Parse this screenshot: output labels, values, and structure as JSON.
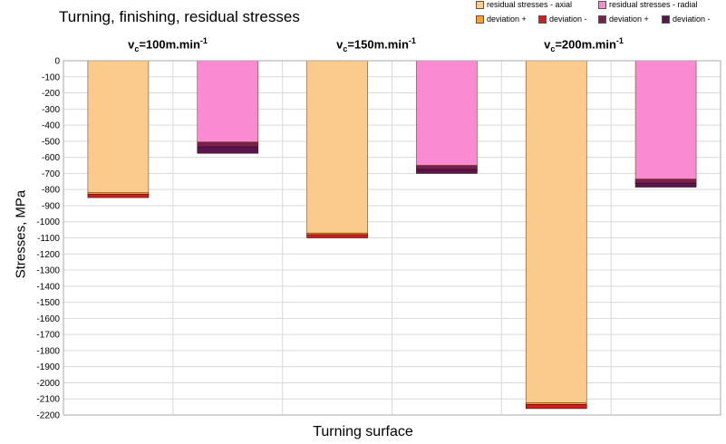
{
  "chart_data": {
    "type": "bar",
    "title": "Turning, finishing, residual stresses",
    "xlabel": "Turning surface",
    "ylabel": "Stresses, MPa",
    "ylim": [
      -2200,
      0
    ],
    "ytick_step": 100,
    "grid": true,
    "legend_position": "top-right",
    "groups": [
      {
        "label_prefix": "v",
        "label_sub": "c",
        "label_main": "=100m.min",
        "label_sup": "-1"
      },
      {
        "label_prefix": "v",
        "label_sub": "c",
        "label_main": "=150m.min",
        "label_sup": "-1"
      },
      {
        "label_prefix": "v",
        "label_sub": "c",
        "label_main": "=200m.min",
        "label_sup": "-1"
      }
    ],
    "series": [
      {
        "name": "residual stresses - axial",
        "color": "#FBCB8E",
        "values": [
          -830,
          -1080,
          -2135
        ]
      },
      {
        "name": "residual stresses - radial",
        "color": "#FA8BD2",
        "values": [
          -535,
          -675,
          -760
        ]
      }
    ],
    "deviation": {
      "axial": {
        "plus_color": "#F7A030",
        "minus_color": "#D81A1A",
        "plus": [
          10,
          10,
          10
        ],
        "minus": [
          20,
          20,
          25
        ]
      },
      "radial": {
        "plus_color": "#7A1F4E",
        "minus_color": "#5A1450",
        "plus": [
          30,
          25,
          25
        ],
        "minus": [
          40,
          25,
          25
        ]
      }
    },
    "legend": [
      {
        "label": "residual stresses - axial",
        "color": "#FBCB8E"
      },
      {
        "label": "residual stresses - radial",
        "color": "#FA8BD2"
      },
      {
        "label": "deviation +",
        "color": "#F7A030"
      },
      {
        "label": "deviation -",
        "color": "#D81A1A"
      },
      {
        "label": "deviation +",
        "color": "#7A1F4E"
      },
      {
        "label": "deviation -",
        "color": "#5A1450"
      }
    ]
  }
}
